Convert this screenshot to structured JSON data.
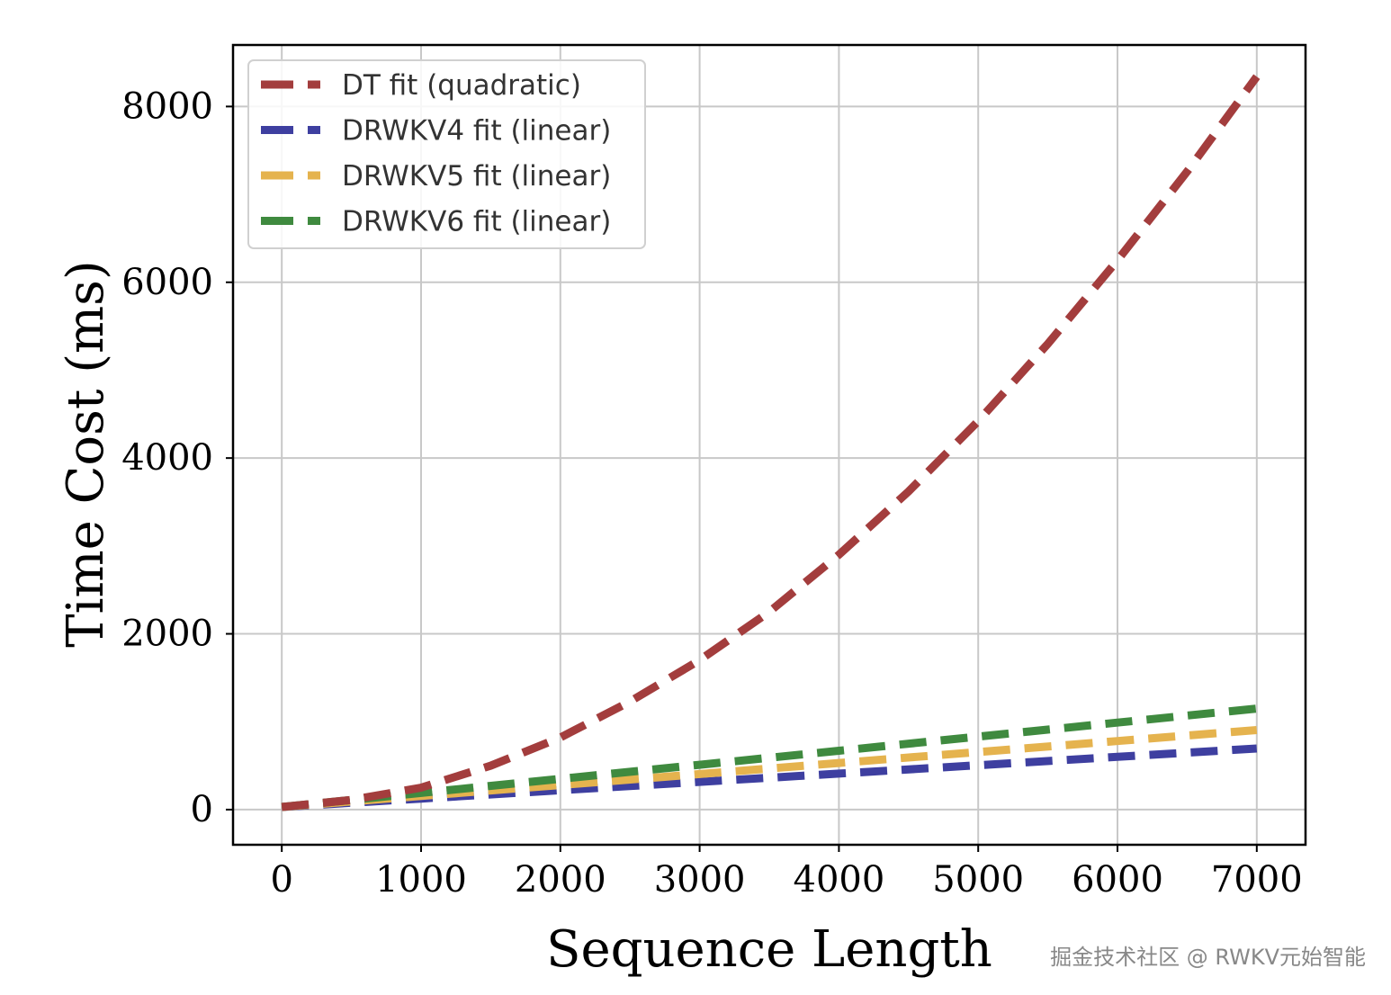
{
  "chart_data": {
    "type": "line",
    "xlabel": "Sequence Length",
    "ylabel": "Time Cost (ms)",
    "xlim": [
      -350,
      7350
    ],
    "ylim": [
      -400,
      8700
    ],
    "xticks": [
      0,
      1000,
      2000,
      3000,
      4000,
      5000,
      6000,
      7000
    ],
    "yticks": [
      0,
      2000,
      4000,
      6000,
      8000
    ],
    "grid": true,
    "legend_position": "top-left",
    "line_style": "dashed",
    "series": [
      {
        "name": "DT fit (quadratic)",
        "color": "#a33d3d",
        "x": [
          0,
          500,
          1000,
          1500,
          2000,
          2500,
          3000,
          3500,
          4000,
          4500,
          5000,
          5500,
          6000,
          6500,
          7000
        ],
        "values": [
          30,
          110,
          250,
          500,
          820,
          1230,
          1700,
          2250,
          2900,
          3620,
          4420,
          5300,
          6250,
          7260,
          8340
        ]
      },
      {
        "name": "DRWKV4 fit (linear)",
        "color": "#3e3fa0",
        "x": [
          0,
          1000,
          2000,
          3000,
          4000,
          5000,
          6000,
          7000
        ],
        "values": [
          30,
          125,
          220,
          315,
          410,
          505,
          600,
          695
        ]
      },
      {
        "name": "DRWKV5 fit (linear)",
        "color": "#e5b34e",
        "x": [
          0,
          1000,
          2000,
          3000,
          4000,
          5000,
          6000,
          7000
        ],
        "values": [
          30,
          155,
          280,
          405,
          530,
          655,
          780,
          905
        ]
      },
      {
        "name": "DRWKV6 fit (linear)",
        "color": "#3f8a3f",
        "x": [
          0,
          1000,
          2000,
          3000,
          4000,
          5000,
          6000,
          7000
        ],
        "values": [
          30,
          190,
          350,
          510,
          670,
          830,
          990,
          1150
        ]
      }
    ]
  },
  "watermark": "掘金技术社区 @ RWKV元始智能"
}
